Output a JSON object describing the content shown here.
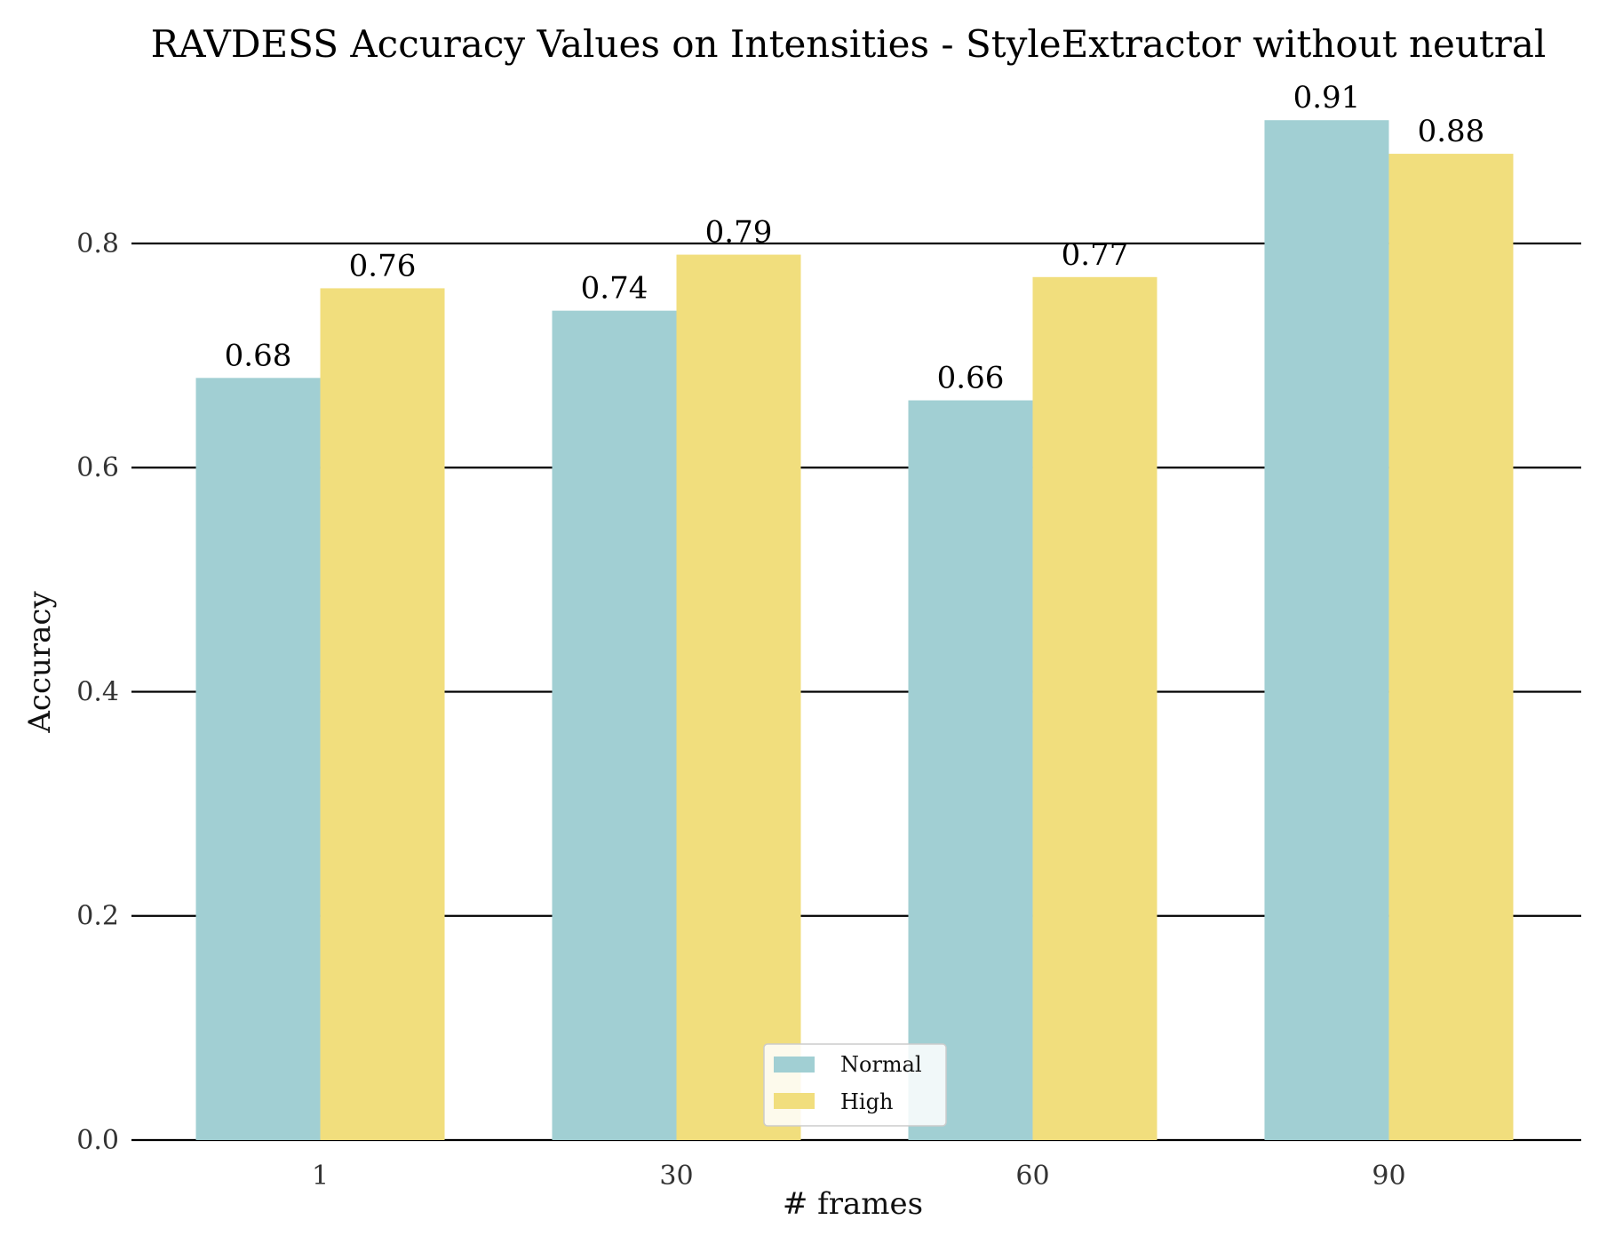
{
  "colors": {
    "normal": "#a1cfd3",
    "high": "#f1de7d",
    "grid": "#000000",
    "axis": "#000000"
  },
  "chart_data": {
    "type": "bar",
    "title": "RAVDESS Accuracy Values on Intensities - StyleExtractor without neutral",
    "xlabel": "# frames",
    "ylabel": "Accuracy",
    "categories": [
      "1",
      "30",
      "60",
      "90"
    ],
    "series": [
      {
        "name": "Normal",
        "values": [
          0.68,
          0.74,
          0.66,
          0.91
        ],
        "value_labels": [
          "0.68",
          "0.74",
          "0.66",
          "0.91"
        ]
      },
      {
        "name": "High",
        "values": [
          0.76,
          0.79,
          0.77,
          0.88
        ],
        "value_labels": [
          "0.76",
          "0.79",
          "0.77",
          "0.88"
        ]
      }
    ],
    "ylim": [
      0,
      0.93
    ],
    "yticks": [
      0.0,
      0.2,
      0.4,
      0.6,
      0.8
    ],
    "ytick_labels": [
      "0.0",
      "0.2",
      "0.4",
      "0.6",
      "0.8"
    ],
    "grid": true,
    "legend_position": "bottom-center"
  }
}
